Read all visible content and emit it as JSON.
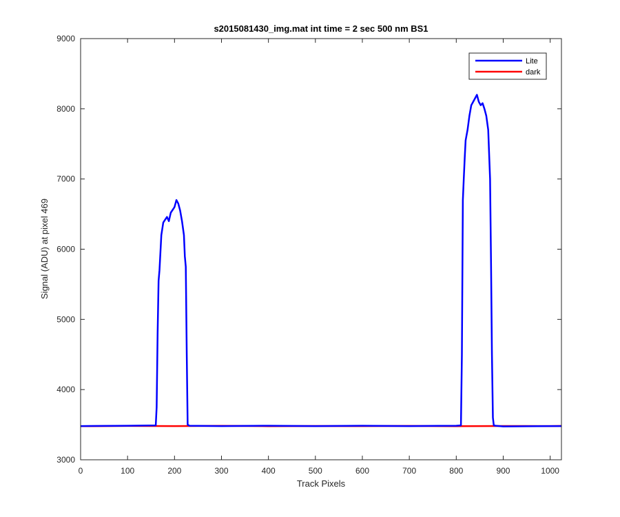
{
  "chart_data": {
    "type": "line",
    "title": "s2015081430_img.mat int time = 2 sec  500 nm BS1",
    "xlabel": "Track Pixels",
    "ylabel": "Signal (ADU) at pixel 469",
    "xlim": [
      0,
      1024
    ],
    "ylim": [
      3000,
      9000
    ],
    "xticks": [
      0,
      100,
      200,
      300,
      400,
      500,
      600,
      700,
      800,
      900,
      1000
    ],
    "yticks": [
      3000,
      4000,
      5000,
      6000,
      7000,
      8000,
      9000
    ],
    "grid": false,
    "legend_position": "top-right",
    "series": [
      {
        "name": "Lite",
        "color": "#0000ff",
        "x": [
          0,
          100,
          160,
          162,
          164,
          166,
          168,
          172,
          176,
          180,
          184,
          188,
          192,
          196,
          200,
          204,
          208,
          212,
          216,
          220,
          222,
          224,
          226,
          228,
          232,
          300,
          400,
          500,
          600,
          700,
          800,
          810,
          812,
          814,
          816,
          818,
          820,
          824,
          828,
          832,
          836,
          840,
          844,
          848,
          852,
          856,
          860,
          864,
          868,
          872,
          874,
          876,
          878,
          880,
          884,
          900,
          1000,
          1024
        ],
        "y": [
          3480,
          3485,
          3490,
          3750,
          4800,
          5550,
          5700,
          6200,
          6380,
          6420,
          6460,
          6400,
          6520,
          6560,
          6600,
          6700,
          6650,
          6550,
          6400,
          6200,
          5900,
          5750,
          4500,
          3500,
          3485,
          3480,
          3485,
          3480,
          3485,
          3480,
          3485,
          3490,
          4500,
          6700,
          7000,
          7300,
          7550,
          7700,
          7900,
          8050,
          8100,
          8150,
          8200,
          8100,
          8050,
          8080,
          8000,
          7900,
          7700,
          7000,
          5800,
          4500,
          3600,
          3490,
          3485,
          3475,
          3480,
          3480
        ]
      },
      {
        "name": "dark",
        "color": "#ff0000",
        "x": [
          0,
          100,
          200,
          300,
          400,
          500,
          600,
          700,
          800,
          900,
          1000,
          1024
        ],
        "y": [
          3478,
          3482,
          3480,
          3483,
          3479,
          3481,
          3480,
          3482,
          3479,
          3481,
          3480,
          3482
        ]
      }
    ]
  }
}
